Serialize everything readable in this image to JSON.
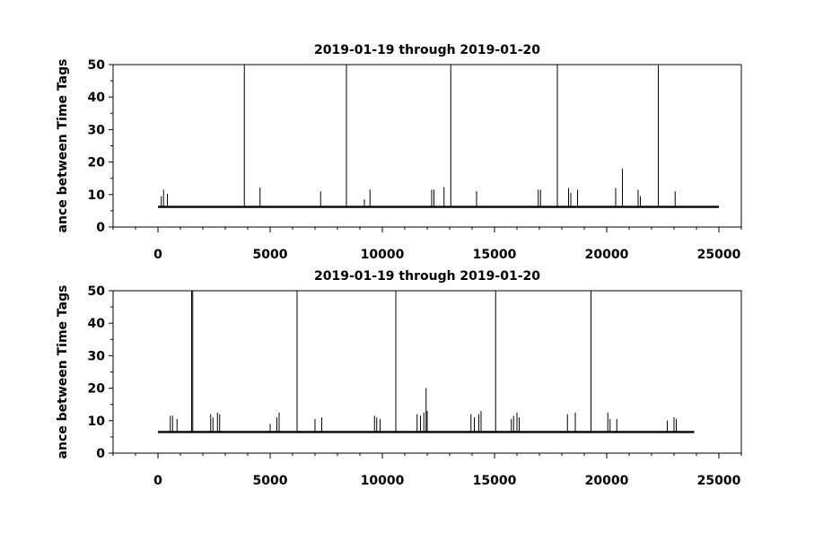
{
  "chart_data": [
    {
      "type": "line",
      "title": "2019-01-19 through 2019-01-20",
      "ylabel": "ance between Time Tags",
      "xlabel": "",
      "xlim": [
        -2000,
        26000
      ],
      "ylim": [
        0,
        50
      ],
      "x_ticks": [
        0,
        5000,
        10000,
        15000,
        20000,
        25000
      ],
      "y_ticks": [
        0,
        10,
        20,
        30,
        40,
        50
      ],
      "grid": false,
      "line_color": "#000000",
      "baseline": {
        "x_start": 0,
        "x_end": 25000,
        "y": 6.2
      },
      "spikes": [
        {
          "x": 150,
          "y": 9.5
        },
        {
          "x": 250,
          "y": 11.5
        },
        {
          "x": 420,
          "y": 10.2
        },
        {
          "x": 3850,
          "y": 50
        },
        {
          "x": 4550,
          "y": 12.2
        },
        {
          "x": 7250,
          "y": 11
        },
        {
          "x": 8400,
          "y": 50
        },
        {
          "x": 9200,
          "y": 8.5
        },
        {
          "x": 9450,
          "y": 11.5
        },
        {
          "x": 12200,
          "y": 11.5
        },
        {
          "x": 12300,
          "y": 11.5
        },
        {
          "x": 12750,
          "y": 12.2
        },
        {
          "x": 13050,
          "y": 50
        },
        {
          "x": 14200,
          "y": 11
        },
        {
          "x": 16950,
          "y": 11.5
        },
        {
          "x": 17050,
          "y": 11.5
        },
        {
          "x": 17800,
          "y": 50
        },
        {
          "x": 18300,
          "y": 12
        },
        {
          "x": 18400,
          "y": 10.5
        },
        {
          "x": 18700,
          "y": 11.5
        },
        {
          "x": 20400,
          "y": 12
        },
        {
          "x": 20700,
          "y": 18
        },
        {
          "x": 21400,
          "y": 11.5
        },
        {
          "x": 21500,
          "y": 9.5
        },
        {
          "x": 22300,
          "y": 50
        },
        {
          "x": 23050,
          "y": 11
        }
      ]
    },
    {
      "type": "line",
      "title": "2019-01-19 through 2019-01-20",
      "ylabel": "ance between Time Tags",
      "xlabel": "",
      "xlim": [
        -2000,
        26000
      ],
      "ylim": [
        0,
        50
      ],
      "x_ticks": [
        0,
        5000,
        10000,
        15000,
        20000,
        25000
      ],
      "y_ticks": [
        0,
        10,
        20,
        30,
        40,
        50
      ],
      "grid": false,
      "line_color": "#000000",
      "baseline": {
        "x_start": 0,
        "x_end": 23900,
        "y": 6.5
      },
      "spikes": [
        {
          "x": 550,
          "y": 11.5
        },
        {
          "x": 650,
          "y": 11.5
        },
        {
          "x": 850,
          "y": 10.5
        },
        {
          "x": 1500,
          "y": 50
        },
        {
          "x": 1550,
          "y": 50
        },
        {
          "x": 2350,
          "y": 12
        },
        {
          "x": 2450,
          "y": 11
        },
        {
          "x": 2650,
          "y": 12.5
        },
        {
          "x": 2750,
          "y": 12
        },
        {
          "x": 5000,
          "y": 9
        },
        {
          "x": 5300,
          "y": 11
        },
        {
          "x": 5400,
          "y": 12.5
        },
        {
          "x": 6200,
          "y": 50
        },
        {
          "x": 7000,
          "y": 10.5
        },
        {
          "x": 7300,
          "y": 11
        },
        {
          "x": 9650,
          "y": 11.5
        },
        {
          "x": 9750,
          "y": 11
        },
        {
          "x": 9900,
          "y": 10.5
        },
        {
          "x": 10600,
          "y": 50
        },
        {
          "x": 11550,
          "y": 12
        },
        {
          "x": 11700,
          "y": 11.5
        },
        {
          "x": 11850,
          "y": 12.5
        },
        {
          "x": 11950,
          "y": 20
        },
        {
          "x": 12000,
          "y": 13
        },
        {
          "x": 13950,
          "y": 12
        },
        {
          "x": 14100,
          "y": 11
        },
        {
          "x": 14300,
          "y": 12
        },
        {
          "x": 14400,
          "y": 13
        },
        {
          "x": 15050,
          "y": 50
        },
        {
          "x": 15750,
          "y": 10.5
        },
        {
          "x": 15850,
          "y": 11.5
        },
        {
          "x": 16000,
          "y": 12.5
        },
        {
          "x": 16100,
          "y": 11
        },
        {
          "x": 18250,
          "y": 12
        },
        {
          "x": 18600,
          "y": 12.5
        },
        {
          "x": 19300,
          "y": 50
        },
        {
          "x": 20050,
          "y": 12.5
        },
        {
          "x": 20150,
          "y": 10.5
        },
        {
          "x": 20450,
          "y": 10.5
        },
        {
          "x": 22700,
          "y": 10
        },
        {
          "x": 23000,
          "y": 11
        },
        {
          "x": 23100,
          "y": 10.5
        }
      ]
    }
  ]
}
